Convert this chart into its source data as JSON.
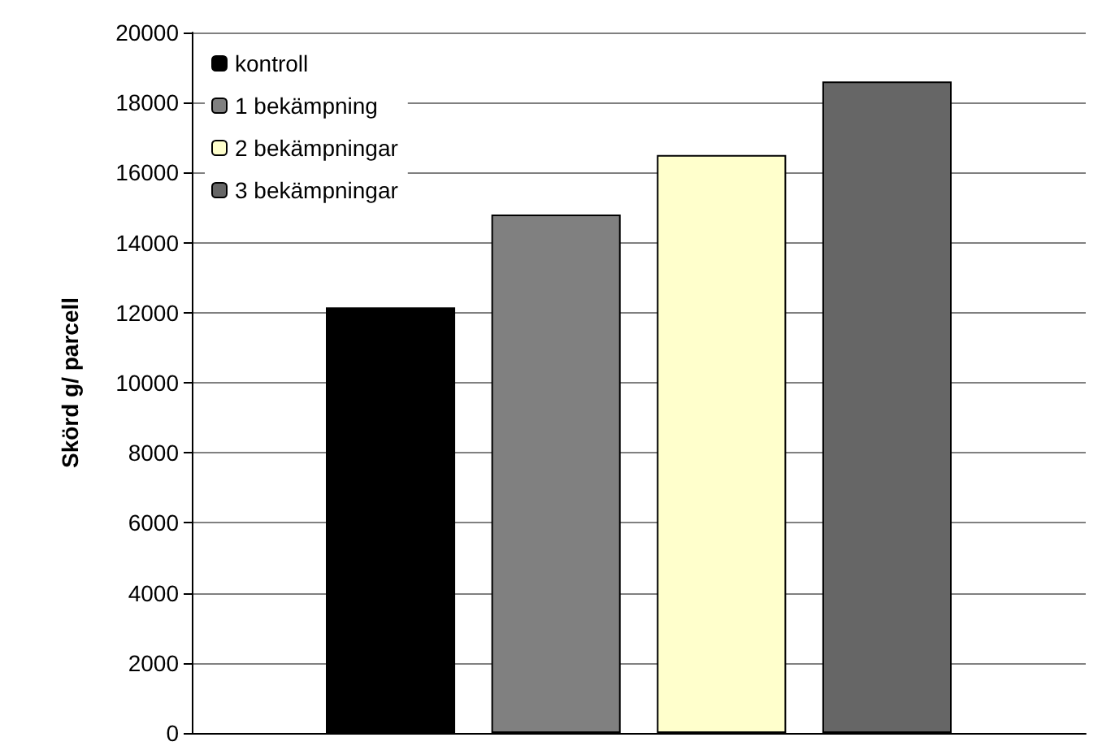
{
  "chart_data": {
    "type": "bar",
    "ylabel": "Skörd g/ parcell",
    "categories": [
      null
    ],
    "series": [
      {
        "name": "kontroll",
        "color": "#000000",
        "values": [
          12150
        ]
      },
      {
        "name": "1 bekämpning",
        "color": "#808080",
        "values": [
          14800
        ]
      },
      {
        "name": "2 bekämpningar",
        "color": "#ffffcc",
        "values": [
          16500
        ]
      },
      {
        "name": "3 bekämpningar",
        "color": "#666666",
        "values": [
          18600
        ]
      }
    ],
    "ylim": [
      0,
      20000
    ],
    "yticks": [
      0,
      2000,
      4000,
      6000,
      8000,
      10000,
      12000,
      14000,
      16000,
      18000,
      20000
    ],
    "grid": "y",
    "legend": "top left"
  }
}
